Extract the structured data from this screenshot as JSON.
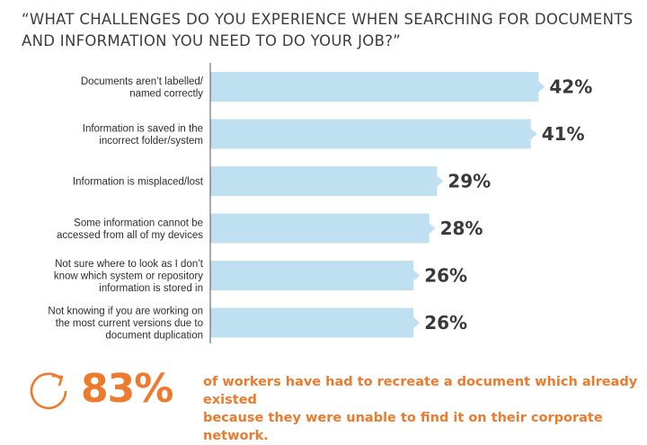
{
  "title": "“WHAT CHALLENGES DO YOU EXPERIENCE WHEN SEARCHING FOR DOCUMENTS\nAND INFORMATION YOU NEED TO DO YOUR JOB?”",
  "colors": {
    "bar": "#bfe0f0",
    "axis": "#555555",
    "accent": "#ee7a2e"
  },
  "chart_data": {
    "type": "bar",
    "orientation": "horizontal",
    "categories": [
      [
        "Documents aren’t labelled/",
        "named correctly"
      ],
      [
        "Information is saved in the",
        "incorrect folder/system"
      ],
      [
        "Information is misplaced/lost"
      ],
      [
        "Some information cannot be",
        "accessed from all of my devices"
      ],
      [
        "Not sure where to look as I don’t",
        "know which system or repository",
        "information is stored in"
      ],
      [
        "Not knowing if you are working on",
        "the most current versions due to",
        "document duplication"
      ]
    ],
    "values": [
      42,
      41,
      29,
      28,
      26,
      26
    ],
    "value_labels": [
      "42%",
      "41%",
      "29%",
      "28%",
      "26%",
      "26%"
    ],
    "xlim": [
      0,
      100
    ],
    "grid": false,
    "legend": "none"
  },
  "footer": {
    "icon": "cycle-arrow-icon",
    "stat": "83%",
    "text": "of workers have had to recreate a document which already existed\nbecause they were unable to find it on their corporate network."
  }
}
